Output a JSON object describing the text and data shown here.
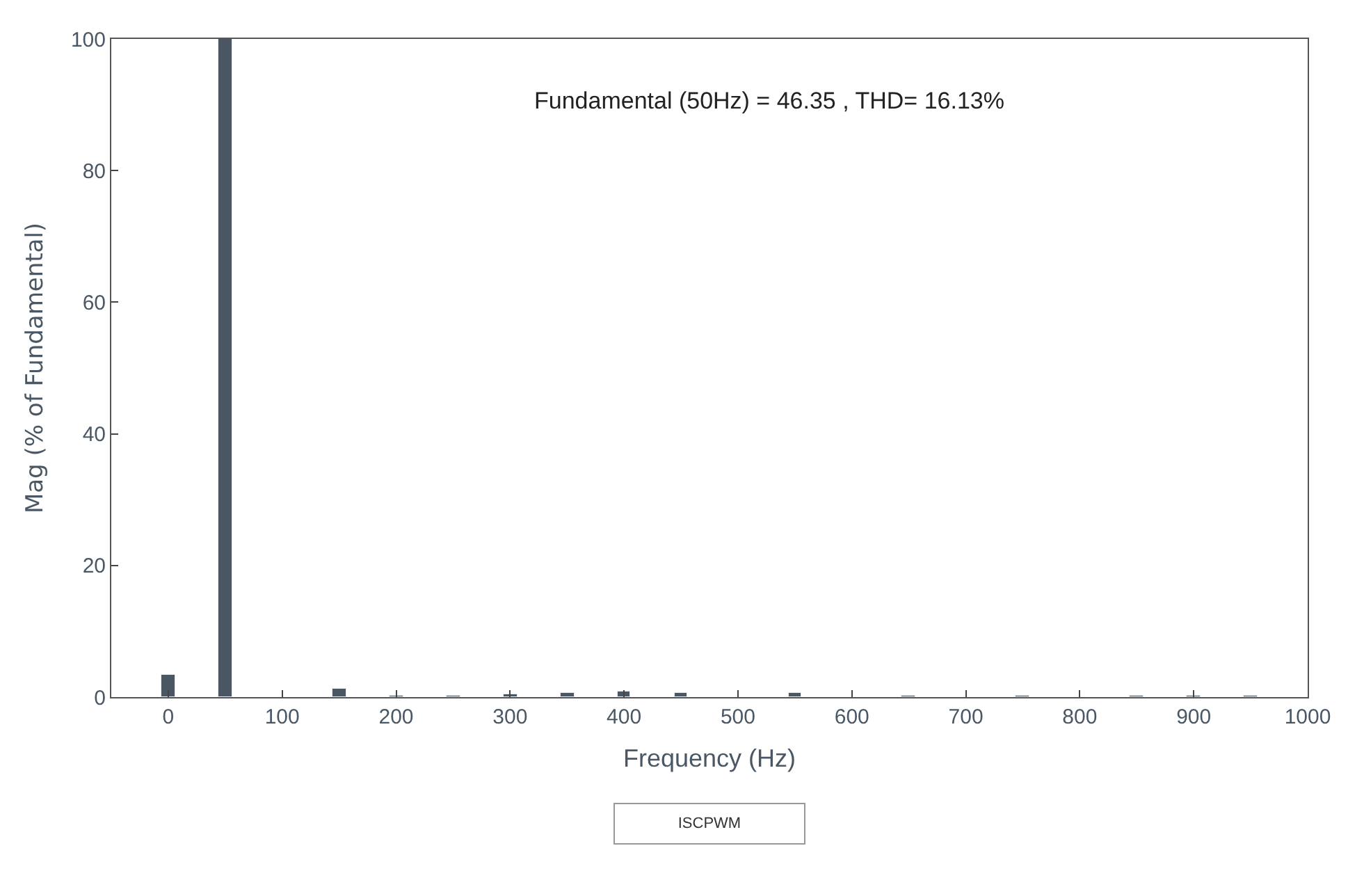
{
  "chart_data": {
    "type": "bar",
    "x": [
      0,
      50,
      150,
      200,
      250,
      300,
      350,
      400,
      450,
      550,
      650,
      750,
      850,
      900,
      950
    ],
    "values": [
      3.3,
      100,
      1.2,
      0.3,
      0.2,
      0.5,
      0.7,
      0.9,
      0.6,
      0.6,
      0.3,
      0.3,
      0.2,
      0.3,
      0.2
    ],
    "color": "#4b5663",
    "xlabel": "Frequency (Hz)",
    "ylabel": "Mag (% of Fundamental)",
    "xlim": [
      -50,
      1000
    ],
    "xticks": [
      0,
      100,
      200,
      300,
      400,
      500,
      600,
      700,
      800,
      900,
      1000
    ],
    "ylim": [
      0,
      100
    ],
    "yticks": [
      0,
      20,
      40,
      60,
      80,
      100
    ],
    "annotations": [
      "Fundamental (50Hz) = 46.35 , THD= 16.13%",
      "ISCPWM"
    ]
  }
}
